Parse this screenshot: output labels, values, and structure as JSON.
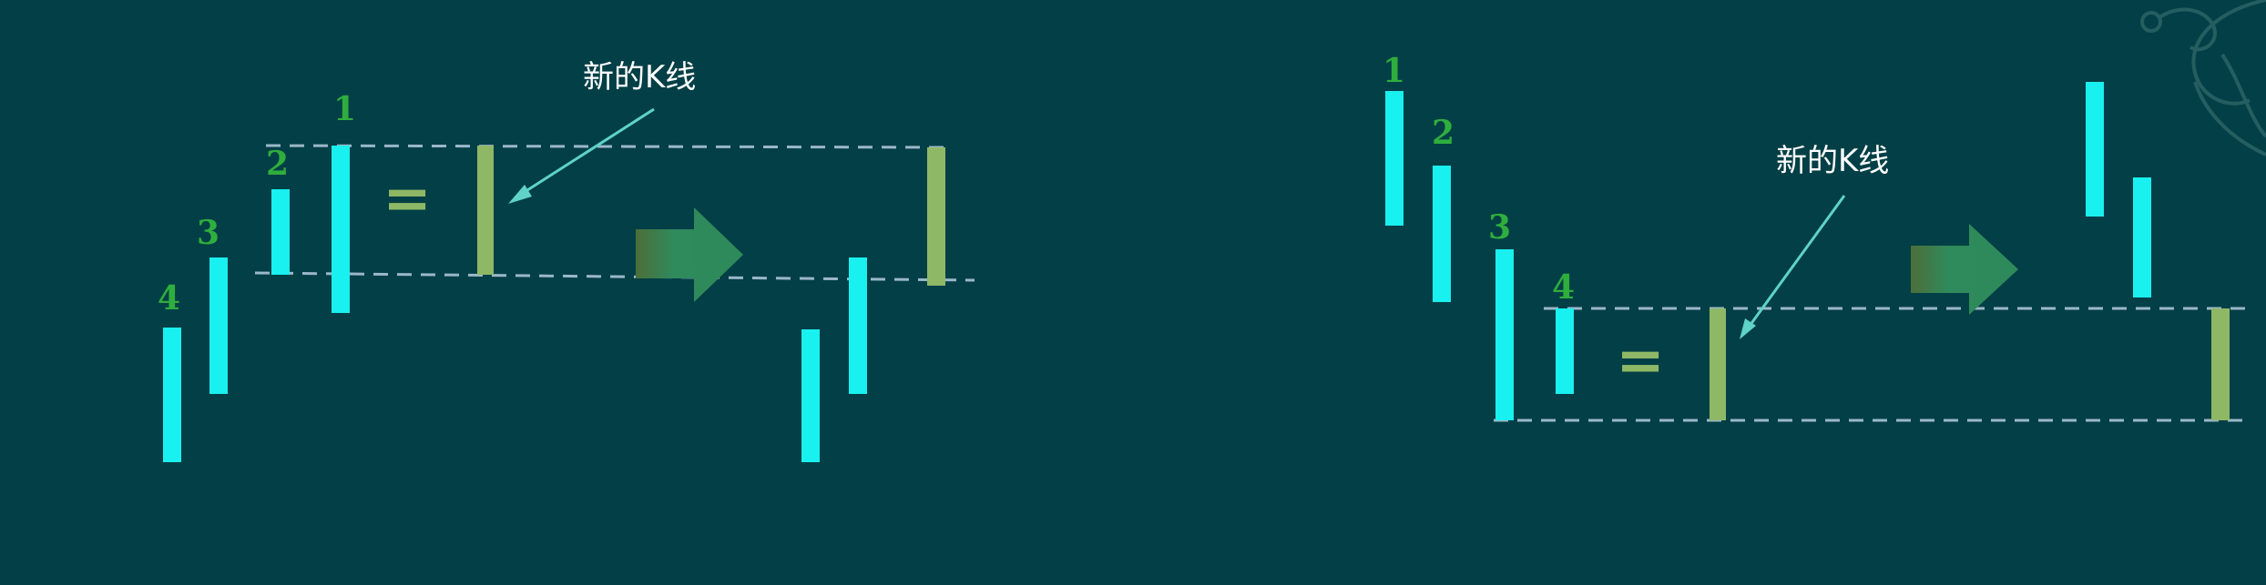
{
  "colors": {
    "background": "#033f46",
    "bar_cyan": "#19f0f0",
    "bar_new": "#8fb866",
    "label_green": "#2fae3d",
    "dashed_line": "#9bb8c8",
    "arrow_green": "#2e8a5a",
    "callout_line": "#5fd3c8",
    "callout_text": "#ffffff"
  },
  "left_panel": {
    "labels": {
      "n1": "1",
      "n2": "2",
      "n3": "3",
      "n4": "4"
    },
    "equals": "=",
    "callout": "新的K线"
  },
  "right_panel": {
    "labels": {
      "n1": "1",
      "n2": "2",
      "n3": "3",
      "n4": "4"
    },
    "equals": "=",
    "callout": "新的K线"
  }
}
